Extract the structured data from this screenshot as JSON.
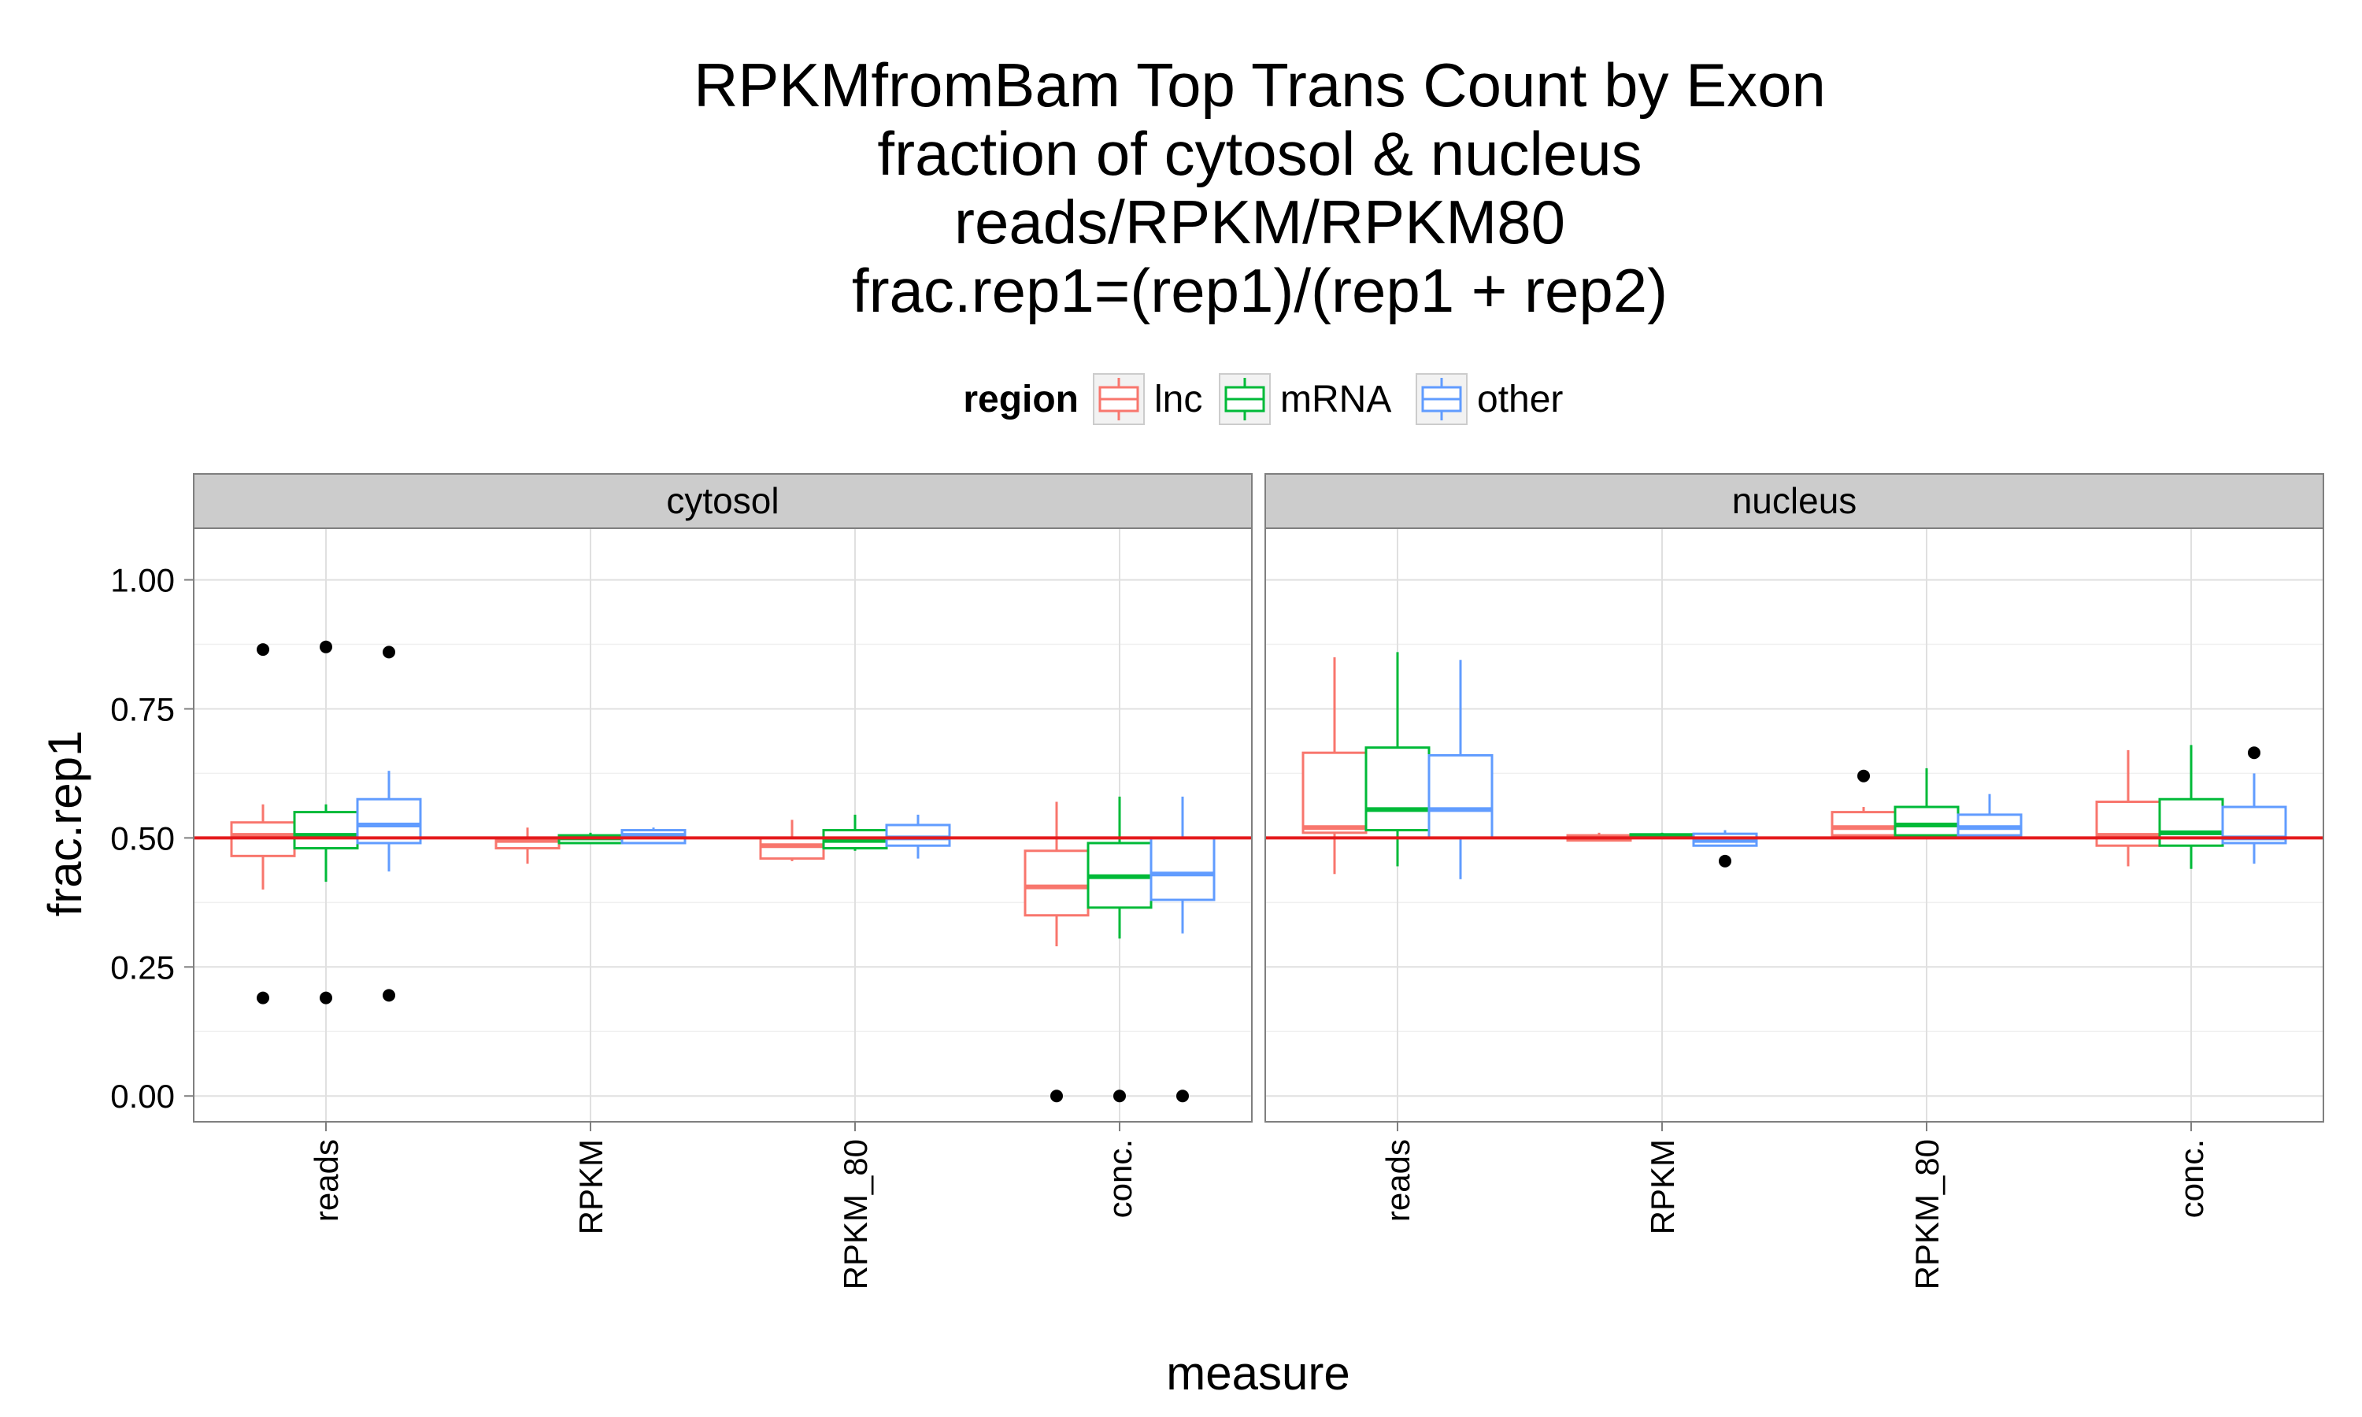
{
  "chart_data": {
    "type": "boxplot",
    "title_lines": [
      "RPKMfromBam Top Trans Count by Exon",
      "fraction of cytosol & nucleus",
      "reads/RPKM/RPKM80",
      "frac.rep1=(rep1)/(rep1 + rep2)"
    ],
    "xlabel": "measure",
    "ylabel": "frac.rep1",
    "ylim": [
      -0.05,
      1.1
    ],
    "yticks": [
      0.0,
      0.25,
      0.5,
      0.75,
      1.0
    ],
    "ytick_labels": [
      "0.00",
      "0.25",
      "0.50",
      "0.75",
      "1.00"
    ],
    "categories": [
      "reads",
      "RPKM",
      "RPKM_80",
      "conc."
    ],
    "reference_line": {
      "y": 0.5,
      "color": "#e41a1c"
    },
    "legend": {
      "title": "region",
      "position": "top",
      "entries": [
        {
          "name": "lnc",
          "color": "#f8766d"
        },
        {
          "name": "mRNA",
          "color": "#00ba38"
        },
        {
          "name": "other",
          "color": "#619cff"
        }
      ]
    },
    "grid": true,
    "panel_background": "#ffffff",
    "strip_background": "#cccccc",
    "facets": [
      {
        "label": "cytosol",
        "boxes": [
          {
            "category": "reads",
            "series": "lnc",
            "whisker_low": 0.4,
            "q1": 0.465,
            "median": 0.505,
            "q3": 0.53,
            "whisker_high": 0.565,
            "outliers": [
              0.865,
              0.19
            ]
          },
          {
            "category": "reads",
            "series": "mRNA",
            "whisker_low": 0.415,
            "q1": 0.48,
            "median": 0.505,
            "q3": 0.55,
            "whisker_high": 0.565,
            "outliers": [
              0.87,
              0.19
            ]
          },
          {
            "category": "reads",
            "series": "other",
            "whisker_low": 0.435,
            "q1": 0.49,
            "median": 0.525,
            "q3": 0.575,
            "whisker_high": 0.63,
            "outliers": [
              0.86,
              0.195
            ]
          },
          {
            "category": "RPKM",
            "series": "lnc",
            "whisker_low": 0.45,
            "q1": 0.48,
            "median": 0.495,
            "q3": 0.5,
            "whisker_high": 0.52,
            "outliers": []
          },
          {
            "category": "RPKM",
            "series": "mRNA",
            "whisker_low": 0.49,
            "q1": 0.49,
            "median": 0.5,
            "q3": 0.505,
            "whisker_high": 0.51,
            "outliers": []
          },
          {
            "category": "RPKM",
            "series": "other",
            "whisker_low": 0.49,
            "q1": 0.49,
            "median": 0.505,
            "q3": 0.515,
            "whisker_high": 0.52,
            "outliers": []
          },
          {
            "category": "RPKM_80",
            "series": "lnc",
            "whisker_low": 0.455,
            "q1": 0.46,
            "median": 0.485,
            "q3": 0.5,
            "whisker_high": 0.535,
            "outliers": []
          },
          {
            "category": "RPKM_80",
            "series": "mRNA",
            "whisker_low": 0.475,
            "q1": 0.48,
            "median": 0.495,
            "q3": 0.515,
            "whisker_high": 0.545,
            "outliers": []
          },
          {
            "category": "RPKM_80",
            "series": "other",
            "whisker_low": 0.46,
            "q1": 0.485,
            "median": 0.5,
            "q3": 0.525,
            "whisker_high": 0.545,
            "outliers": []
          },
          {
            "category": "conc.",
            "series": "lnc",
            "whisker_low": 0.29,
            "q1": 0.35,
            "median": 0.405,
            "q3": 0.475,
            "whisker_high": 0.57,
            "outliers": [
              0.0
            ]
          },
          {
            "category": "conc.",
            "series": "mRNA",
            "whisker_low": 0.305,
            "q1": 0.365,
            "median": 0.425,
            "q3": 0.49,
            "whisker_high": 0.58,
            "outliers": [
              0.0
            ]
          },
          {
            "category": "conc.",
            "series": "other",
            "whisker_low": 0.315,
            "q1": 0.38,
            "median": 0.43,
            "q3": 0.5,
            "whisker_high": 0.58,
            "outliers": [
              0.0
            ]
          }
        ]
      },
      {
        "label": "nucleus",
        "boxes": [
          {
            "category": "reads",
            "series": "lnc",
            "whisker_low": 0.43,
            "q1": 0.51,
            "median": 0.52,
            "q3": 0.665,
            "whisker_high": 0.85,
            "outliers": []
          },
          {
            "category": "reads",
            "series": "mRNA",
            "whisker_low": 0.445,
            "q1": 0.515,
            "median": 0.555,
            "q3": 0.675,
            "whisker_high": 0.86,
            "outliers": []
          },
          {
            "category": "reads",
            "series": "other",
            "whisker_low": 0.42,
            "q1": 0.5,
            "median": 0.555,
            "q3": 0.66,
            "whisker_high": 0.845,
            "outliers": []
          },
          {
            "category": "RPKM",
            "series": "lnc",
            "whisker_low": 0.495,
            "q1": 0.495,
            "median": 0.5,
            "q3": 0.505,
            "whisker_high": 0.51,
            "outliers": []
          },
          {
            "category": "RPKM",
            "series": "mRNA",
            "whisker_low": 0.5,
            "q1": 0.5,
            "median": 0.503,
            "q3": 0.507,
            "whisker_high": 0.51,
            "outliers": []
          },
          {
            "category": "RPKM",
            "series": "other",
            "whisker_low": 0.485,
            "q1": 0.485,
            "median": 0.495,
            "q3": 0.508,
            "whisker_high": 0.515,
            "outliers": [
              0.455
            ]
          },
          {
            "category": "RPKM_80",
            "series": "lnc",
            "whisker_low": 0.5,
            "q1": 0.505,
            "median": 0.52,
            "q3": 0.55,
            "whisker_high": 0.56,
            "outliers": [
              0.62
            ]
          },
          {
            "category": "RPKM_80",
            "series": "mRNA",
            "whisker_low": 0.5,
            "q1": 0.505,
            "median": 0.525,
            "q3": 0.56,
            "whisker_high": 0.635,
            "outliers": []
          },
          {
            "category": "RPKM_80",
            "series": "other",
            "whisker_low": 0.5,
            "q1": 0.505,
            "median": 0.52,
            "q3": 0.545,
            "whisker_high": 0.585,
            "outliers": []
          },
          {
            "category": "conc.",
            "series": "lnc",
            "whisker_low": 0.445,
            "q1": 0.485,
            "median": 0.505,
            "q3": 0.57,
            "whisker_high": 0.67,
            "outliers": []
          },
          {
            "category": "conc.",
            "series": "mRNA",
            "whisker_low": 0.44,
            "q1": 0.485,
            "median": 0.51,
            "q3": 0.575,
            "whisker_high": 0.68,
            "outliers": []
          },
          {
            "category": "conc.",
            "series": "other",
            "whisker_low": 0.45,
            "q1": 0.49,
            "median": 0.5,
            "q3": 0.56,
            "whisker_high": 0.625,
            "outliers": [
              0.665
            ]
          }
        ]
      }
    ]
  }
}
